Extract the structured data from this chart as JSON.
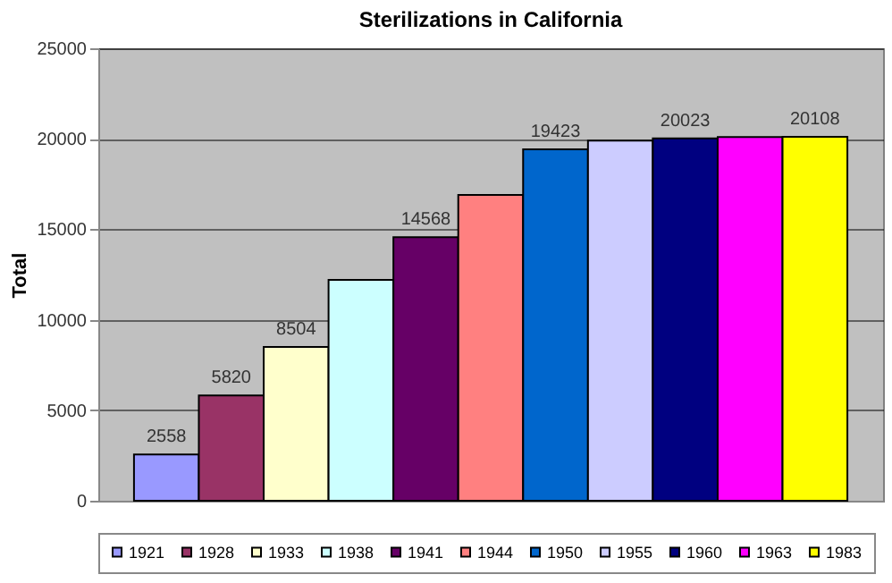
{
  "chart_data": {
    "type": "bar",
    "title": "Sterilizations in California",
    "ylabel": "Total",
    "categories": [
      null
    ],
    "series": [
      {
        "name": "1921",
        "color": "#9999ff",
        "values": [
          2558
        ],
        "value_labels": [
          "2558"
        ]
      },
      {
        "name": "1928",
        "color": "#993366",
        "values": [
          5820
        ],
        "value_labels": [
          "5820"
        ]
      },
      {
        "name": "1933",
        "color": "#ffffcc",
        "values": [
          8504
        ],
        "value_labels": [
          "8504"
        ]
      },
      {
        "name": "1938",
        "color": "#ccffff",
        "values": [
          12200
        ],
        "value_labels": [
          null
        ]
      },
      {
        "name": "1941",
        "color": "#660066",
        "values": [
          14568
        ],
        "value_labels": [
          "14568"
        ]
      },
      {
        "name": "1944",
        "color": "#ff8080",
        "values": [
          16900
        ],
        "value_labels": [
          null
        ]
      },
      {
        "name": "1950",
        "color": "#0066cc",
        "values": [
          19423
        ],
        "value_labels": [
          "19423"
        ]
      },
      {
        "name": "1955",
        "color": "#ccccff",
        "values": [
          19900
        ],
        "value_labels": [
          null
        ]
      },
      {
        "name": "1960",
        "color": "#000080",
        "values": [
          20023
        ],
        "value_labels": [
          "20023"
        ]
      },
      {
        "name": "1963",
        "color": "#ff00ff",
        "values": [
          20100
        ],
        "value_labels": [
          null
        ]
      },
      {
        "name": "1983",
        "color": "#ffff00",
        "values": [
          20108
        ],
        "value_labels": [
          "20108"
        ]
      }
    ],
    "ylim": [
      0,
      25000
    ],
    "yticks": [
      0,
      5000,
      10000,
      15000,
      20000,
      25000
    ],
    "grid": "y",
    "legend": "bottom"
  }
}
